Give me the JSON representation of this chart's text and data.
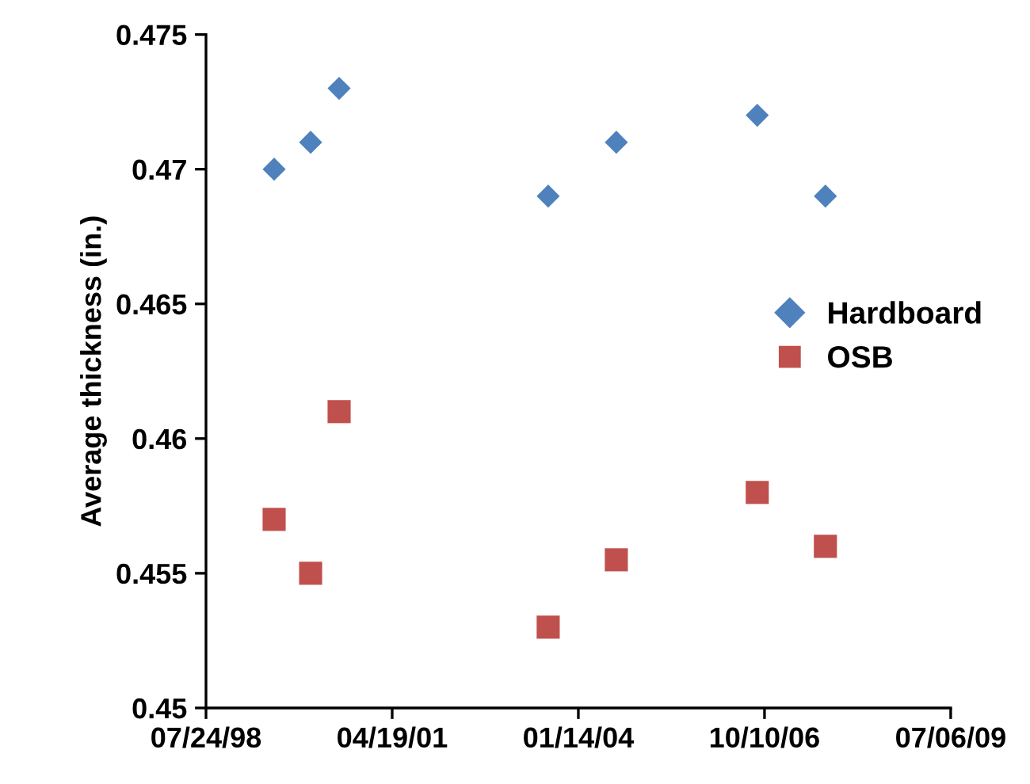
{
  "chart_data": {
    "type": "scatter",
    "ylabel": "Average thickness (in.)",
    "xlim": [
      "1998-07-24",
      "2009-07-06"
    ],
    "xticks": [
      {
        "value": "1998-07-24",
        "label": "07/24/98"
      },
      {
        "value": "2001-04-19",
        "label": "04/19/01"
      },
      {
        "value": "2004-01-14",
        "label": "01/14/04"
      },
      {
        "value": "2006-10-10",
        "label": "10/10/06"
      },
      {
        "value": "2009-07-06",
        "label": "07/06/09"
      }
    ],
    "ylim": [
      0.45,
      0.475
    ],
    "yticks": [
      0.45,
      0.455,
      0.46,
      0.465,
      0.47,
      0.475
    ],
    "grid": false,
    "legend": "right",
    "series": [
      {
        "name": "Hardboard",
        "color": "#4f81bd",
        "marker": "diamond",
        "x": [
          "1999-07-25",
          "2000-02-06",
          "2000-07-08",
          "2003-08-05",
          "2004-08-05",
          "2006-09-01",
          "2007-09-02"
        ],
        "values": [
          0.47,
          0.471,
          0.473,
          0.469,
          0.471,
          0.472,
          0.469
        ]
      },
      {
        "name": "OSB",
        "color": "#c0504d",
        "marker": "square",
        "x": [
          "1999-07-25",
          "2000-02-06",
          "2000-07-08",
          "2003-08-05",
          "2004-08-05",
          "2006-09-01",
          "2007-09-02"
        ],
        "values": [
          0.457,
          0.455,
          0.461,
          0.453,
          0.4555,
          0.458,
          0.456
        ]
      }
    ]
  }
}
